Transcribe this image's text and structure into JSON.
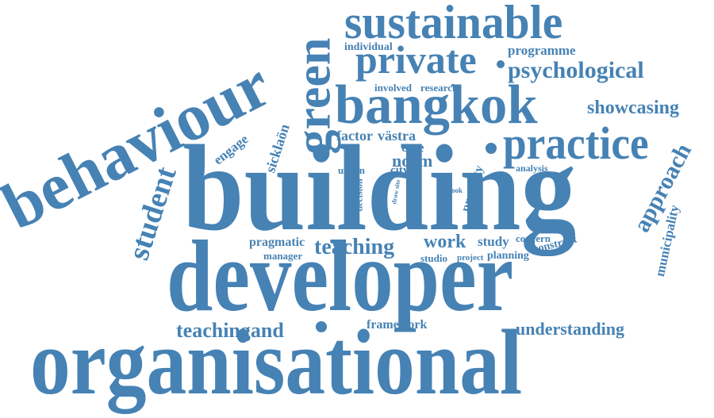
{
  "colors": {
    "word": "#4682b4",
    "background": "#ffffff"
  },
  "words": {
    "organisational": "organisational",
    "developer": "developer",
    "building": "building",
    "behaviour": "behaviour",
    "bangkok": "bangkok",
    "sustainable": "sustainable",
    "practice": "practice",
    "private": "private",
    "green": "green",
    "psychological": "psychological",
    "student": "student",
    "showcasing": "showcasing",
    "approach": "approach",
    "teaching": "teaching",
    "teachingand": "teachingand",
    "understanding": "understanding",
    "municipality": "municipality",
    "work": "work",
    "programme": "programme",
    "individual": "individual",
    "involved": "involved",
    "research": "research",
    "factor": "factor",
    "vastra": "västra",
    "case": "case",
    "norm": "norm",
    "engage": "engage",
    "sicklaon": "sicklaön",
    "urban": "urban",
    "city": "city",
    "decision": "decision",
    "drawsite": "draw site",
    "book": "book",
    "property": "property",
    "analysis": "analysis",
    "pragmatic": "pragmatic",
    "manager": "manager",
    "study": "study",
    "concern": "concern",
    "construct": "construct",
    "studio": "studio",
    "project": "project",
    "planning": "planning",
    "framework": "framework"
  }
}
